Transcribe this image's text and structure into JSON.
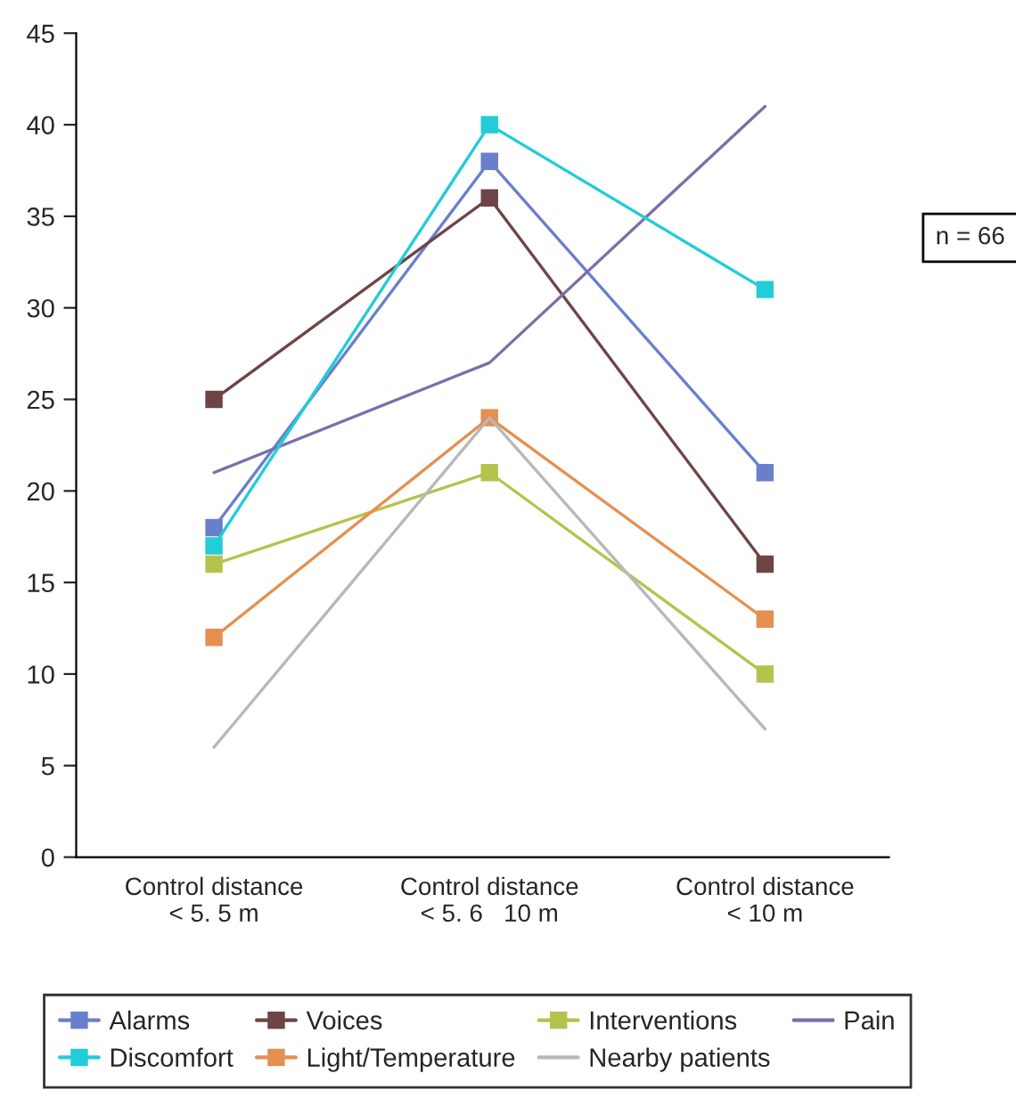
{
  "chart_data": {
    "type": "line",
    "categories": [
      "Control distance\n< 5. 5 m",
      "Control distance\n< 5. 6   10 m",
      "Control distance\n< 10 m"
    ],
    "series": [
      {
        "name": "Alarms",
        "color": "#6a7fcc",
        "marker": "square",
        "values": [
          18,
          38,
          21
        ]
      },
      {
        "name": "Voices",
        "color": "#6e4546",
        "marker": "square",
        "values": [
          25,
          36,
          16
        ]
      },
      {
        "name": "Interventions",
        "color": "#b5c34d",
        "marker": "square",
        "values": [
          16,
          21,
          10
        ]
      },
      {
        "name": "Pain",
        "color": "#7a70a8",
        "marker": "none",
        "values": [
          21,
          27,
          41
        ]
      },
      {
        "name": "Discomfort",
        "color": "#22ccd8",
        "marker": "square",
        "values": [
          17,
          40,
          31
        ]
      },
      {
        "name": "Light/Temperature",
        "color": "#e59050",
        "marker": "square",
        "values": [
          12,
          24,
          13
        ]
      },
      {
        "name": "Nearby patients",
        "color": "#b8b8b8",
        "marker": "none",
        "values": [
          6,
          24,
          7
        ]
      }
    ],
    "ylim": [
      0,
      45
    ],
    "yticks": [
      0,
      5,
      10,
      15,
      20,
      25,
      30,
      35,
      40,
      45
    ],
    "annotations": [
      "n = 66"
    ],
    "grid": false,
    "legend": "bottom",
    "line_style": "solid"
  }
}
